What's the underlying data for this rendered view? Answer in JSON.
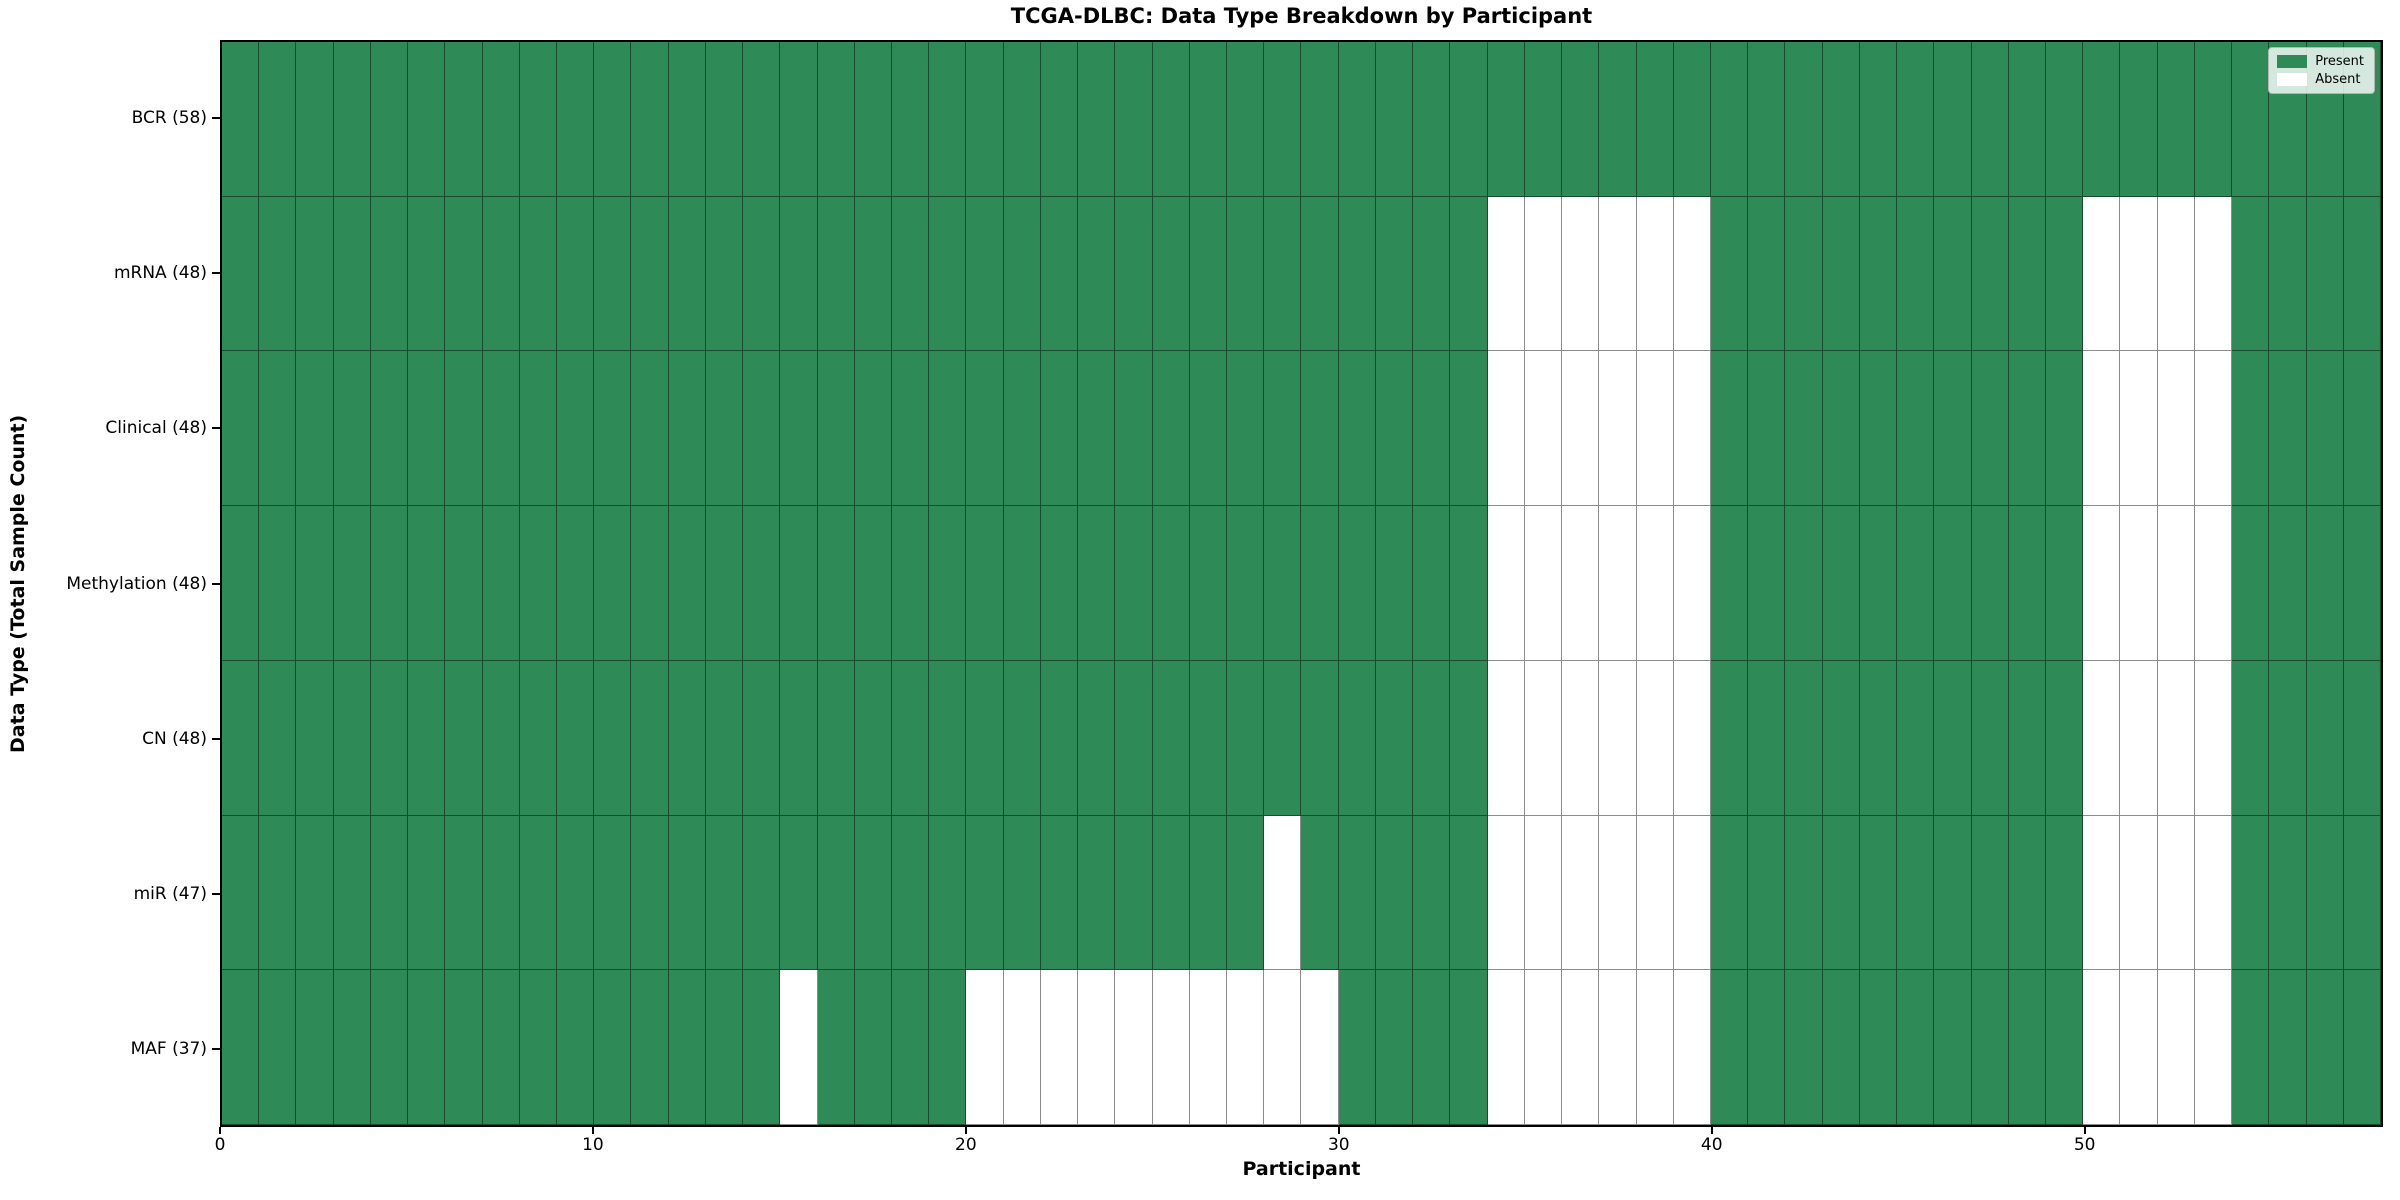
{
  "chart_data": {
    "type": "heatmap",
    "title": "TCGA-DLBC: Data Type Breakdown by Participant",
    "xlabel": "Participant",
    "ylabel": "Data Type (Total Sample Count)",
    "n_participants": 58,
    "xlim": [
      0,
      58
    ],
    "x_ticks": [
      0,
      10,
      20,
      30,
      40,
      50
    ],
    "grid": true,
    "legend_position": "upper right",
    "colors": {
      "present": "#2e8b57",
      "absent": "#ffffff",
      "cell_edge": "rgba(0,0,0,0.45)",
      "axes_border": "#000000"
    },
    "legend": [
      {
        "label": "Present",
        "color": "#2e8b57"
      },
      {
        "label": "Absent",
        "color": "#ffffff"
      }
    ],
    "rows": [
      {
        "label": "BCR (58)",
        "total": 58,
        "absent_participants": []
      },
      {
        "label": "mRNA (48)",
        "total": 48,
        "absent_participants": [
          34,
          35,
          36,
          37,
          38,
          39,
          50,
          51,
          52,
          53
        ]
      },
      {
        "label": "Clinical (48)",
        "total": 48,
        "absent_participants": [
          34,
          35,
          36,
          37,
          38,
          39,
          50,
          51,
          52,
          53
        ]
      },
      {
        "label": "Methylation (48)",
        "total": 48,
        "absent_participants": [
          34,
          35,
          36,
          37,
          38,
          39,
          50,
          51,
          52,
          53
        ]
      },
      {
        "label": "CN (48)",
        "total": 48,
        "absent_participants": [
          34,
          35,
          36,
          37,
          38,
          39,
          50,
          51,
          52,
          53
        ]
      },
      {
        "label": "miR (47)",
        "total": 47,
        "absent_participants": [
          28,
          34,
          35,
          36,
          37,
          38,
          39,
          50,
          51,
          52,
          53
        ]
      },
      {
        "label": "MAF (37)",
        "total": 37,
        "absent_participants": [
          15,
          20,
          21,
          22,
          23,
          24,
          25,
          26,
          27,
          28,
          29,
          34,
          35,
          36,
          37,
          38,
          39,
          50,
          51,
          52,
          53
        ]
      }
    ]
  }
}
